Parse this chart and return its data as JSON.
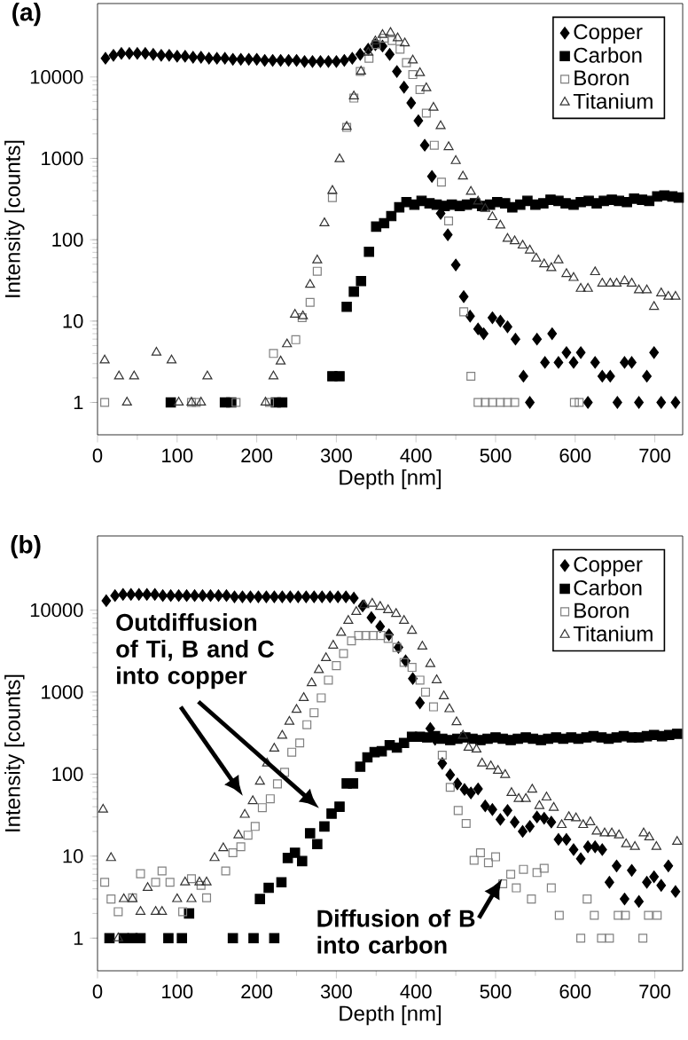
{
  "chart_data": [
    {
      "type": "scatter",
      "title": "(a)",
      "xlabel": "Depth [nm]",
      "ylabel": "Intensity [counts]",
      "xlim": [
        0,
        735
      ],
      "ylim": [
        0.4,
        80000
      ],
      "xticks": [
        0,
        100,
        200,
        300,
        400,
        500,
        600,
        700
      ],
      "yticks": [
        1,
        10,
        100,
        1000,
        10000
      ],
      "log": "y",
      "legend": "top right",
      "series": [
        {
          "name": "Copper",
          "color": "#000000",
          "marker": "diamond",
          "x": [
            10,
            20,
            30,
            40,
            50,
            60,
            70,
            80,
            90,
            100,
            110,
            120,
            130,
            140,
            150,
            160,
            170,
            180,
            190,
            200,
            210,
            220,
            230,
            240,
            250,
            260,
            270,
            280,
            290,
            300,
            310,
            320,
            330,
            340,
            349,
            358,
            367,
            376,
            385,
            394,
            403,
            411,
            420,
            431,
            440,
            450,
            460,
            468,
            478,
            485,
            496,
            506,
            515,
            525,
            535,
            543,
            552,
            562,
            571,
            579,
            589,
            598,
            607,
            616,
            625,
            634,
            644,
            653,
            662,
            671,
            680,
            690,
            699,
            708,
            726
          ],
          "values": [
            17000,
            18500,
            19500,
            19500,
            19500,
            19500,
            19000,
            18500,
            18500,
            18000,
            18000,
            17500,
            17500,
            17000,
            17000,
            17000,
            16500,
            16500,
            16500,
            16500,
            16000,
            16000,
            16000,
            16000,
            16000,
            15500,
            15500,
            15500,
            15500,
            15500,
            16000,
            17000,
            19000,
            22000,
            25000,
            24000,
            19000,
            11700,
            7500,
            4800,
            2900,
            1450,
            600,
            210,
            115,
            49,
            20,
            11.5,
            8,
            7,
            11,
            10,
            8.5,
            6,
            2.1,
            1,
            6,
            3.1,
            7,
            3.1,
            4.1,
            3.1,
            4.1,
            1,
            3.1,
            2.1,
            2.1,
            1,
            3.1,
            3.1,
            1,
            2.1,
            4.1,
            1,
            1
          ]
        },
        {
          "name": "Carbon",
          "color": "#000000",
          "marker": "square",
          "x": [
            92,
            160,
            168,
            224,
            232,
            295,
            304,
            313,
            322,
            331,
            341,
            350,
            360,
            369,
            379,
            388,
            398,
            407,
            417,
            426,
            436,
            445,
            455,
            464,
            474,
            483,
            493,
            502,
            512,
            521,
            531,
            540,
            550,
            560,
            569,
            579,
            588,
            598,
            607,
            617,
            627,
            636,
            646,
            655,
            665,
            674,
            684,
            693,
            703,
            712,
            722,
            730
          ],
          "values": [
            1,
            1,
            1,
            1,
            1,
            2.1,
            2.1,
            15,
            23,
            31,
            71,
            145,
            160,
            195,
            250,
            290,
            270,
            300,
            280,
            270,
            260,
            270,
            260,
            270,
            280,
            260,
            270,
            290,
            280,
            250,
            270,
            300,
            270,
            280,
            310,
            300,
            280,
            270,
            290,
            300,
            280,
            300,
            310,
            300,
            290,
            320,
            310,
            300,
            340,
            350,
            340,
            330
          ]
        },
        {
          "name": "Boron",
          "color": "#808080",
          "marker": "square",
          "x": [
            9,
            118,
            124,
            174,
            216,
            221,
            249,
            257,
            267,
            276,
            295,
            313,
            322,
            330,
            341,
            350,
            360,
            370,
            380,
            388,
            396,
            405,
            413,
            423,
            432,
            441,
            460,
            469,
            478,
            487,
            496,
            506,
            515,
            524,
            599,
            605
          ],
          "values": [
            1,
            1,
            1,
            1,
            1,
            4,
            5.9,
            11,
            17,
            41,
            330,
            2400,
            5500,
            11700,
            17000,
            25000,
            30000,
            28000,
            22000,
            15000,
            10700,
            7000,
            3600,
            1450,
            510,
            170,
            13,
            2.1,
            1,
            1,
            1,
            1,
            1,
            1,
            1,
            1
          ]
        },
        {
          "name": "Titanium",
          "color": "#333333",
          "marker": "triangle",
          "x": [
            9,
            27,
            37,
            46,
            74,
            93,
            102,
            118,
            130,
            138,
            211,
            221,
            230,
            238,
            248,
            258,
            267,
            276,
            285,
            295,
            304,
            313,
            322,
            331,
            340,
            349,
            358,
            368,
            377,
            386,
            396,
            405,
            413,
            422,
            431,
            441,
            450,
            459,
            469,
            478,
            487,
            496,
            506,
            515,
            524,
            534,
            543,
            551,
            561,
            570,
            579,
            589,
            598,
            607,
            616,
            625,
            634,
            644,
            652,
            662,
            671,
            680,
            690,
            699,
            708,
            717,
            726
          ],
          "values": [
            3.3,
            2.1,
            1,
            2.1,
            4.1,
            3.3,
            1,
            1,
            1,
            2.1,
            1,
            2.1,
            3.2,
            5.2,
            12,
            11.5,
            28,
            56,
            160,
            400,
            980,
            2450,
            5800,
            11700,
            20000,
            27500,
            33000,
            35000,
            30000,
            26000,
            16000,
            11200,
            7300,
            4200,
            2500,
            1380,
            930,
            600,
            390,
            295,
            240,
            190,
            150,
            103,
            96,
            85,
            74,
            59,
            50,
            45,
            56,
            38,
            34,
            25,
            25,
            40,
            29,
            29,
            29,
            31,
            29,
            24,
            24,
            15,
            22,
            20,
            20
          ]
        }
      ]
    },
    {
      "type": "scatter",
      "title": "(b)",
      "xlabel": "Depth [nm]",
      "ylabel": "Intensity [counts]",
      "xlim": [
        0,
        735
      ],
      "ylim": [
        0.4,
        80000
      ],
      "xticks": [
        0,
        100,
        200,
        300,
        400,
        500,
        600,
        700
      ],
      "yticks": [
        1,
        10,
        100,
        1000,
        10000
      ],
      "log": "y",
      "legend": "top right",
      "annotations": [
        "Outdiffusion of Ti, B and C into copper",
        "Diffusion of B into carbon"
      ],
      "series": [
        {
          "name": "Copper",
          "color": "#000000",
          "marker": "diamond",
          "x": [
            11,
            22,
            32,
            42,
            52,
            62,
            72,
            82,
            92,
            102,
            112,
            122,
            132,
            142,
            152,
            162,
            172,
            182,
            192,
            202,
            212,
            222,
            232,
            242,
            252,
            262,
            272,
            282,
            292,
            302,
            312,
            322,
            333,
            344,
            355,
            366,
            378,
            387,
            396,
            405,
            418,
            424,
            433,
            443,
            452,
            461,
            469,
            478,
            487,
            496,
            506,
            515,
            524,
            534,
            543,
            552,
            561,
            570,
            579,
            589,
            598,
            607,
            616,
            625,
            634,
            643,
            652,
            662,
            671,
            680,
            690,
            699,
            708,
            717,
            726
          ],
          "values": [
            13000,
            15000,
            15500,
            15500,
            15500,
            15500,
            15500,
            15000,
            15000,
            15000,
            15000,
            15000,
            15000,
            15000,
            15000,
            15000,
            14500,
            14500,
            14500,
            14500,
            14500,
            14500,
            14500,
            14500,
            14500,
            14500,
            14500,
            14500,
            14500,
            14500,
            14500,
            14000,
            11200,
            8100,
            6300,
            5000,
            3500,
            2400,
            1460,
            740,
            360,
            265,
            135,
            98,
            76,
            65,
            59,
            66,
            41,
            37,
            28,
            36,
            26,
            20,
            23,
            30,
            29,
            26,
            16,
            16,
            12,
            9.3,
            13,
            13,
            12,
            4.8,
            7.6,
            3,
            6.7,
            2.8,
            4.8,
            5.6,
            4.4,
            7.6,
            3.7
          ]
        },
        {
          "name": "Carbon",
          "color": "#000000",
          "marker": "square",
          "x": [
            15,
            33,
            44,
            54,
            89,
            106,
            115,
            170,
            196,
            204,
            215,
            222,
            231,
            239,
            248,
            257,
            267,
            276,
            285,
            294,
            304,
            313,
            321,
            330,
            339,
            348,
            357,
            367,
            376,
            385,
            395,
            405,
            414,
            424,
            433,
            443,
            452,
            462,
            471,
            481,
            490,
            500,
            509,
            519,
            528,
            538,
            547,
            557,
            566,
            576,
            585,
            595,
            604,
            614,
            623,
            633,
            642,
            652,
            661,
            671,
            680,
            690,
            699,
            709,
            718,
            728
          ],
          "values": [
            1,
            1,
            1,
            1,
            1,
            1,
            2,
            1,
            1,
            3,
            4.1,
            1,
            4.8,
            9.5,
            11,
            8.7,
            19,
            14,
            23,
            33,
            40,
            77,
            77,
            123,
            160,
            185,
            190,
            225,
            210,
            240,
            285,
            285,
            280,
            290,
            270,
            260,
            270,
            280,
            270,
            260,
            270,
            280,
            270,
            260,
            270,
            280,
            270,
            260,
            270,
            280,
            270,
            280,
            270,
            280,
            290,
            280,
            270,
            280,
            290,
            280,
            280,
            290,
            300,
            290,
            300,
            310
          ]
        },
        {
          "name": "Boron",
          "color": "#808080",
          "marker": "square",
          "x": [
            9,
            17,
            26,
            44,
            54,
            73,
            81,
            91,
            107,
            118,
            130,
            137,
            161,
            170,
            180,
            189,
            198,
            207,
            217,
            226,
            235,
            244,
            254,
            263,
            272,
            281,
            290,
            300,
            309,
            319,
            328,
            337,
            346,
            356,
            365,
            376,
            385,
            395,
            405,
            412,
            422,
            433,
            443,
            453,
            463,
            473,
            481,
            491,
            500,
            509,
            519,
            526,
            535,
            545,
            552,
            561,
            570,
            580,
            607,
            615,
            624,
            633,
            643,
            654,
            663,
            685,
            692,
            703
          ],
          "values": [
            4.8,
            3,
            2.1,
            3.1,
            6.1,
            4.8,
            6.6,
            4.8,
            2.1,
            5.3,
            4.4,
            3.1,
            6.6,
            11,
            13,
            18,
            23,
            39,
            50,
            76,
            105,
            185,
            240,
            400,
            560,
            850,
            1400,
            2100,
            2950,
            4200,
            4900,
            4900,
            4900,
            4900,
            4500,
            3500,
            2300,
            2000,
            1400,
            1000,
            660,
            170,
            69,
            36,
            25,
            8.9,
            11,
            8.3,
            9.8,
            4.6,
            6,
            4.1,
            6.9,
            3,
            6.3,
            7.1,
            4.1,
            1.9,
            1,
            3,
            1.9,
            1,
            1,
            1.9,
            1.9,
            1,
            1.9,
            1.9
          ]
        },
        {
          "name": "Titanium",
          "color": "#333333",
          "marker": "triangle",
          "x": [
            7,
            17,
            26,
            33,
            44,
            54,
            63,
            73,
            81,
            100,
            110,
            118,
            128,
            137,
            147,
            158,
            177,
            185,
            195,
            204,
            213,
            222,
            232,
            241,
            250,
            259,
            269,
            278,
            287,
            296,
            306,
            315,
            325,
            335,
            345,
            355,
            365,
            375,
            385,
            395,
            408,
            418,
            426,
            435,
            442,
            451,
            459,
            466,
            476,
            483,
            494,
            503,
            512,
            520,
            529,
            538,
            546,
            555,
            564,
            573,
            583,
            592,
            601,
            610,
            619,
            627,
            637,
            646,
            655,
            664,
            675,
            686,
            693,
            702,
            728
          ],
          "values": [
            37,
            9.5,
            1,
            3,
            3,
            2.1,
            4.1,
            2.1,
            2.1,
            3,
            4.8,
            3,
            4.8,
            4.8,
            9.5,
            12.5,
            18,
            32,
            47,
            81,
            135,
            205,
            295,
            435,
            610,
            850,
            1290,
            1860,
            2600,
            3700,
            5300,
            7400,
            9500,
            11500,
            12000,
            11000,
            10000,
            9000,
            7400,
            5600,
            3600,
            2200,
            1400,
            890,
            620,
            430,
            295,
            210,
            200,
            135,
            125,
            110,
            98,
            59,
            50,
            50,
            65,
            41,
            52,
            39,
            24,
            30,
            29,
            24,
            26,
            20,
            19,
            19,
            18,
            14,
            13,
            19,
            17,
            13,
            15
          ]
        }
      ]
    }
  ]
}
